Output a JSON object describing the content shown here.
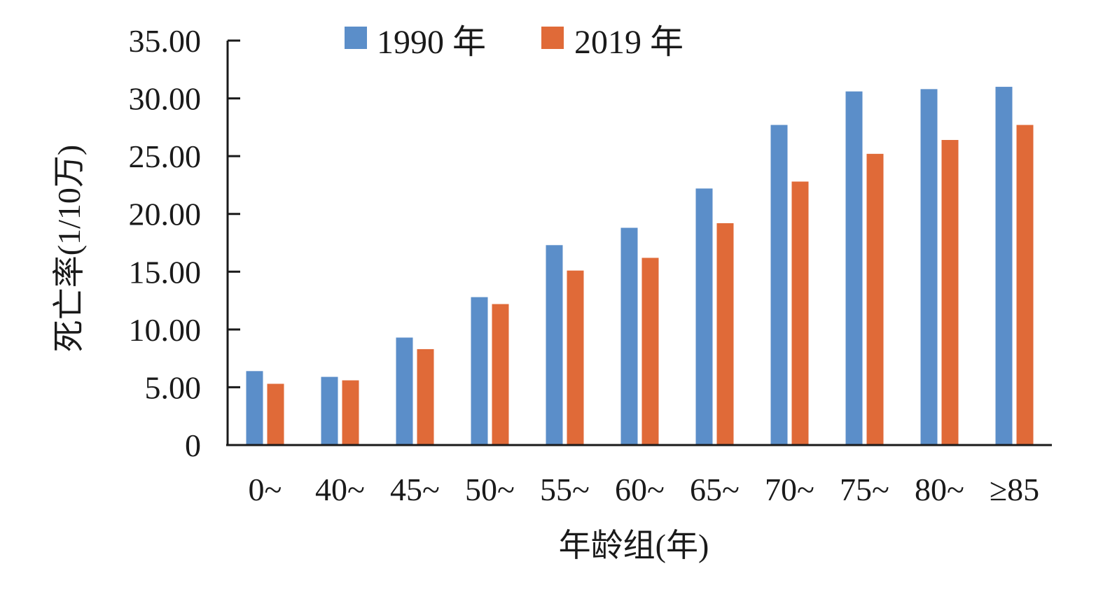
{
  "chart_data": {
    "type": "bar",
    "title": "",
    "xlabel": "年龄组(年)",
    "ylabel": "死亡率(1/10万)",
    "ylim": [
      0,
      35
    ],
    "yticks": [
      "0",
      "5.00",
      "10.00",
      "15.00",
      "20.00",
      "25.00",
      "30.00",
      "35.00"
    ],
    "ytick_values": [
      0,
      5,
      10,
      15,
      20,
      25,
      30,
      35
    ],
    "categories": [
      "0~",
      "40~",
      "45~",
      "50~",
      "55~",
      "60~",
      "65~",
      "70~",
      "75~",
      "80~",
      "≥85"
    ],
    "series": [
      {
        "name": "1990 年",
        "color": "#5b8ec9",
        "values": [
          6.4,
          5.9,
          9.3,
          12.8,
          17.3,
          18.8,
          22.2,
          27.7,
          30.6,
          30.8,
          31.0
        ]
      },
      {
        "name": "2019 年",
        "color": "#e06a38",
        "values": [
          5.3,
          5.6,
          8.3,
          12.2,
          15.1,
          16.2,
          19.2,
          22.8,
          25.2,
          26.4,
          27.7
        ]
      }
    ],
    "grid": false,
    "legend": "top-center"
  }
}
